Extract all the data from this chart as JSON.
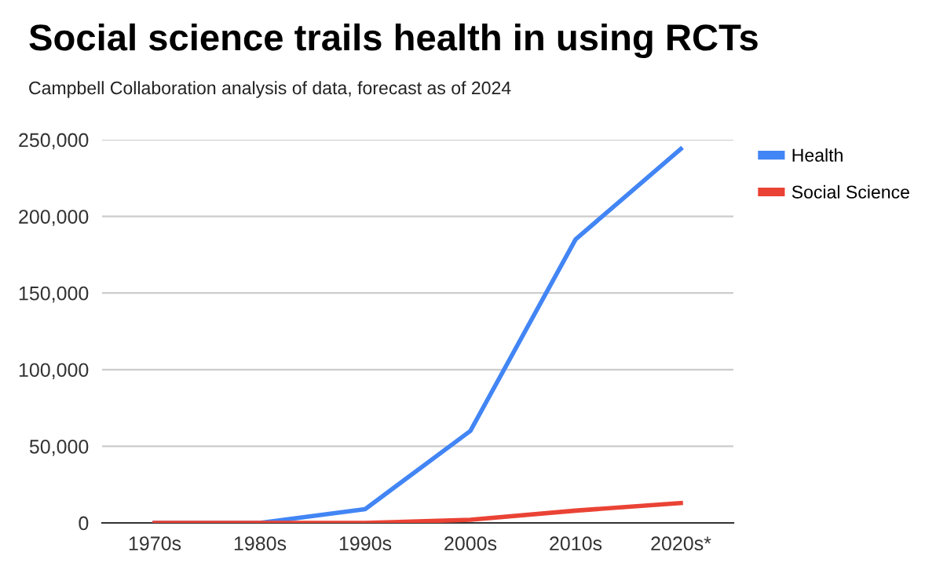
{
  "chart_data": {
    "type": "line",
    "title": "Social science trails health in using RCTs",
    "subtitle": "Campbell Collaboration analysis of data, forecast as of 2024",
    "categories": [
      "1970s",
      "1980s",
      "1990s",
      "2000s",
      "2010s",
      "2020s*"
    ],
    "series": [
      {
        "name": "Health",
        "color": "#4285f4",
        "values": [
          0,
          0,
          9000,
          60000,
          185000,
          244000
        ]
      },
      {
        "name": "Social Science",
        "color": "#ea4335",
        "values": [
          0,
          0,
          0,
          2000,
          8000,
          13000
        ]
      }
    ],
    "ylim": [
      0,
      250000
    ],
    "yticks": [
      {
        "value": 0,
        "label": "0"
      },
      {
        "value": 50000,
        "label": "50,000"
      },
      {
        "value": 100000,
        "label": "100,000"
      },
      {
        "value": 150000,
        "label": "150,000"
      },
      {
        "value": 200000,
        "label": "200,000"
      },
      {
        "value": 250000,
        "label": "250,000"
      }
    ],
    "grid": "y",
    "legend": "right",
    "marker": "none",
    "line_style": "solid"
  }
}
